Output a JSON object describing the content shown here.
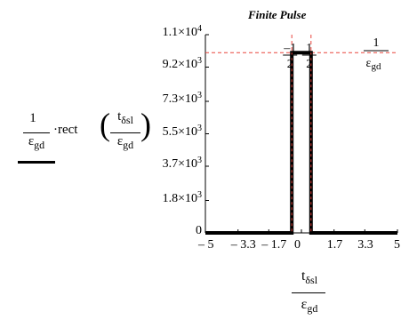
{
  "chart_data": {
    "type": "line",
    "title": "Finite Pulse",
    "ylabel": {
      "numerator": "1",
      "denominator_base": "ε",
      "denominator_sub": "gd",
      "operator": "·rect",
      "arg_num_base": "t",
      "arg_num_sub": "δsl",
      "arg_den_base": "ε",
      "arg_den_sub": "gd"
    },
    "xlabel": {
      "num_base": "t",
      "num_sub": "δsl",
      "den_base": "ε",
      "den_sub": "gd"
    },
    "y_ticks": [
      {
        "value": 0,
        "mant": "0",
        "exp": ""
      },
      {
        "value": 1800,
        "mant": "1.8×10",
        "exp": "3"
      },
      {
        "value": 3700,
        "mant": "3.7×10",
        "exp": "3"
      },
      {
        "value": 5500,
        "mant": "5.5×10",
        "exp": "3"
      },
      {
        "value": 7300,
        "mant": "7.3×10",
        "exp": "3"
      },
      {
        "value": 9200,
        "mant": "9.2×10",
        "exp": "3"
      },
      {
        "value": 11000,
        "mant": "1.1×10",
        "exp": "4"
      }
    ],
    "x_ticks": [
      {
        "value": -5,
        "label": "– 5"
      },
      {
        "value": -3.3,
        "label": "– 3.3"
      },
      {
        "value": -1.7,
        "label": "– 1.7"
      },
      {
        "value": 0,
        "label": "0"
      },
      {
        "value": 1.7,
        "label": "1.7"
      },
      {
        "value": 3.3,
        "label": "3.3"
      },
      {
        "value": 5,
        "label": "5"
      }
    ],
    "xlim": [
      -5,
      5
    ],
    "ylim": [
      0,
      11000
    ],
    "series": [
      {
        "color": "#000000",
        "x": [
          -5,
          -0.5,
          -0.5,
          0.5,
          0.5,
          5
        ],
        "y": [
          0,
          0,
          10000,
          10000,
          0,
          0
        ]
      }
    ],
    "reference_lines": {
      "horizontal": {
        "y": 10000,
        "color": "#e8453c"
      },
      "vertical": [
        {
          "x": -0.5,
          "color": "#e8453c"
        },
        {
          "x": 0.5,
          "color": "#e8453c"
        }
      ]
    },
    "annotations": [
      {
        "text": "–1",
        "x": -0.5,
        "y": 10000,
        "bottom": "2",
        "note": "fraction –1/2 at left marker"
      },
      {
        "text": "1",
        "x": 0.5,
        "y": 10000,
        "bottom": "2",
        "note": "fraction 1/2 at right marker"
      },
      {
        "text": "1",
        "bottom": "ε",
        "sub": "gd",
        "note": "1/ε_gd at horizontal marker"
      }
    ]
  }
}
